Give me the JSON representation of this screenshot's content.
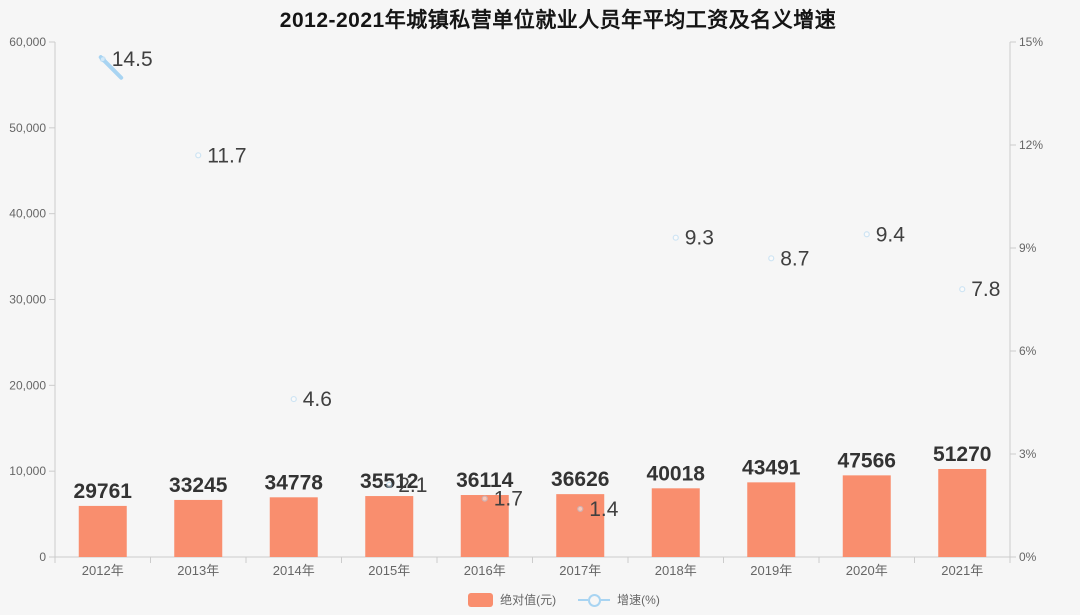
{
  "title": "2012-2021年城镇私营单位就业人员年平均工资及名义增速",
  "colors": {
    "background": "#f6f6f6",
    "bar": "#f98e6e",
    "line": "#a8d4f2",
    "axis": "#cccccc",
    "tick_text": "#666666",
    "category_text": "#666666",
    "value_label": "#333333",
    "growth_label": "#404040",
    "title_text": "#151515"
  },
  "legend": {
    "bar_label": "绝对值(元)",
    "line_label": "增速(%)"
  },
  "chart_data": {
    "type": "bar",
    "subtype": "bar+line combo (dual axis)",
    "title": "2012-2021年城镇私营单位就业人员年平均工资及名义增速",
    "categories": [
      "2012年",
      "2013年",
      "2014年",
      "2015年",
      "2016年",
      "2017年",
      "2018年",
      "2019年",
      "2020年",
      "2021年"
    ],
    "series": [
      {
        "name": "绝对值(元)",
        "type": "bar",
        "axis": "left",
        "color": "#f98e6e",
        "values": [
          29761,
          33245,
          34778,
          35512,
          36114,
          36626,
          40018,
          43491,
          47566,
          51270
        ]
      },
      {
        "name": "增速(%)",
        "type": "line",
        "axis": "right",
        "color": "#a8d4f2",
        "values": [
          14.5,
          11.7,
          4.6,
          2.1,
          1.7,
          1.4,
          9.3,
          8.7,
          9.4,
          7.8
        ]
      }
    ],
    "left_axis": {
      "min": 0,
      "max": 60000,
      "tick_labels": [
        "0",
        "10,000",
        "20,000",
        "30,000",
        "40,000",
        "50,000",
        "60,000"
      ]
    },
    "right_axis": {
      "min": 0,
      "max": 15,
      "tick_labels": [
        "0%",
        "3%",
        "6%",
        "9%",
        "12%",
        "15%"
      ]
    },
    "legend_position": "bottom",
    "grid": false,
    "annotations": "bar value labels shown above bars; growth labels shown at right of each point; only the first segment of the growth line is drawn"
  }
}
